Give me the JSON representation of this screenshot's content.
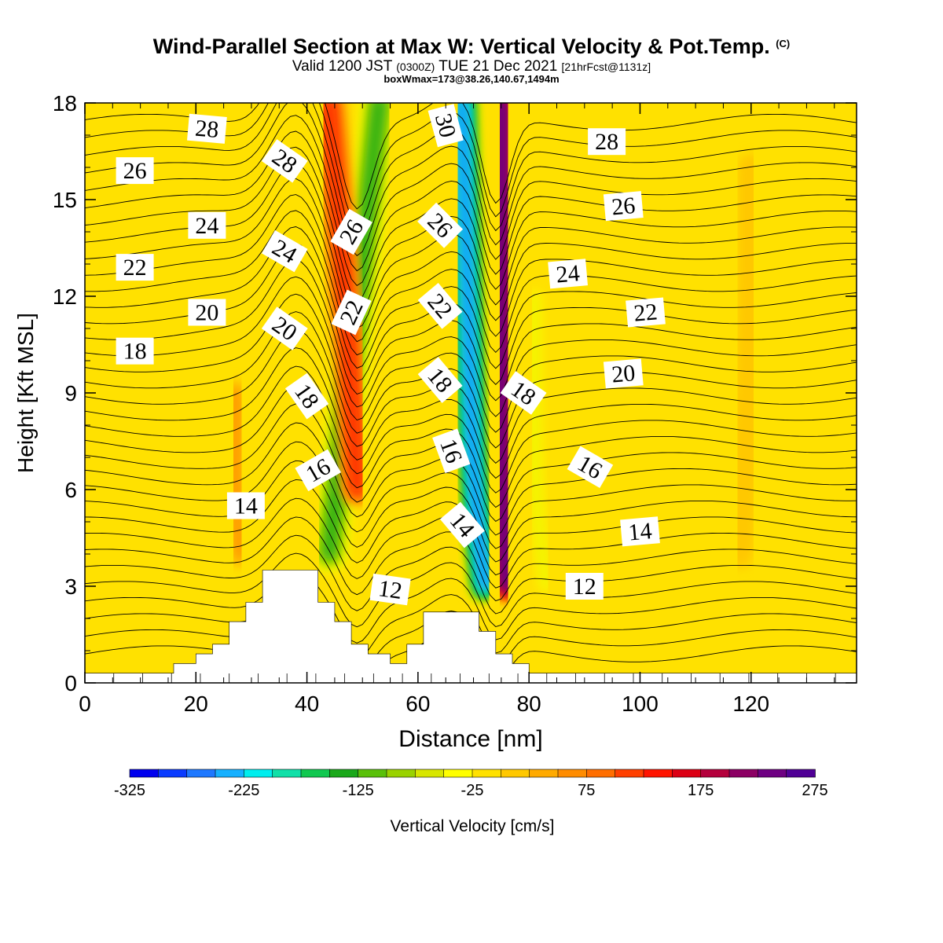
{
  "header": {
    "title": "Wind-Parallel Section at Max W: Vertical Velocity & Pot.Temp.",
    "title_mark": "(C)",
    "valid_prefix": "Valid 1200 JST",
    "valid_zulu": "(0300Z)",
    "valid_date": "TUE 21 Dec 2021",
    "forecast": "[21hrFcst@1131z]",
    "box_info": "boxWmax=173@38.26,140.67,1494m"
  },
  "chart_data": {
    "type": "heatmap",
    "xlabel": "Distance [nm]",
    "ylabel": "Height [Kft MSL]",
    "xlim": [
      0,
      139
    ],
    "ylim": [
      0,
      18
    ],
    "x_ticks": [
      0,
      20,
      40,
      60,
      80,
      100,
      120
    ],
    "y_ticks": [
      0,
      3,
      6,
      9,
      12,
      15,
      18
    ],
    "colorbar": {
      "label": "Vertical Velocity [cm/s]",
      "min": -325,
      "max": 275,
      "step": 25,
      "tick_labels": [
        "-325",
        "-225",
        "-125",
        "-25",
        "75",
        "175",
        "275"
      ],
      "colors": [
        "#0000ee",
        "#0a3bff",
        "#1e78ff",
        "#16b0ff",
        "#00eeee",
        "#10e0a8",
        "#10c850",
        "#1aa81a",
        "#5ac00a",
        "#9ad200",
        "#d8e600",
        "#ffff00",
        "#ffe100",
        "#ffc800",
        "#ffaa00",
        "#ff8c00",
        "#ff6e00",
        "#ff4000",
        "#ff1400",
        "#dc0014",
        "#b4003c",
        "#8c0064",
        "#6e0082",
        "#500096"
      ]
    },
    "terrain_profile_kft": {
      "x": [
        0,
        16,
        16,
        20,
        20,
        23,
        23,
        26,
        26,
        29,
        29,
        32,
        32,
        42,
        42,
        45,
        45,
        48,
        48,
        51,
        51,
        55,
        55,
        58,
        58,
        61,
        61,
        71,
        71,
        74,
        74,
        77,
        77,
        80,
        80,
        84,
        84,
        139
      ],
      "y": [
        0.3,
        0.3,
        0.6,
        0.6,
        0.9,
        0.9,
        1.2,
        1.2,
        1.9,
        1.9,
        2.5,
        2.5,
        3.5,
        3.5,
        2.5,
        2.5,
        1.9,
        1.9,
        1.2,
        1.2,
        0.9,
        0.9,
        0.6,
        0.6,
        1.2,
        1.2,
        2.2,
        2.2,
        1.6,
        1.6,
        0.9,
        0.9,
        0.6,
        0.6,
        0.3,
        0.3,
        0.3,
        0.3
      ]
    },
    "vertical_velocity_features": [
      {
        "x_kft": [
          [
            53,
            18
          ],
          [
            48,
            10
          ],
          [
            44,
            4
          ]
        ],
        "w": -150,
        "width_nm": 4
      },
      {
        "x_kft": [
          [
            44,
            18
          ],
          [
            47,
            12
          ],
          [
            49,
            6
          ]
        ],
        "w": 125,
        "width_nm": 3
      },
      {
        "x_kft": [
          [
            68,
            18
          ],
          [
            69,
            12
          ],
          [
            70,
            6
          ],
          [
            72,
            3
          ]
        ],
        "w": -260,
        "width_nm": 3
      },
      {
        "x_kft": [
          [
            75,
            18
          ],
          [
            75,
            12
          ],
          [
            75,
            6
          ],
          [
            76,
            3
          ]
        ],
        "w": 250,
        "width_nm": 2.5
      },
      {
        "x_kft": [
          [
            81,
            12
          ],
          [
            81,
            6
          ],
          [
            83,
            3
          ]
        ],
        "w": -60,
        "width_nm": 2
      },
      {
        "x_kft": [
          [
            27,
            9
          ],
          [
            27,
            6
          ],
          [
            28,
            4
          ]
        ],
        "w": 60,
        "width_nm": 3
      },
      {
        "x_kft": [
          [
            10,
            17
          ],
          [
            10,
            14
          ],
          [
            10,
            12
          ]
        ],
        "w": 20,
        "width_nm": 4
      },
      {
        "x_kft": [
          [
            120,
            16
          ],
          [
            120,
            10
          ],
          [
            118,
            4
          ]
        ],
        "w": 15,
        "width_nm": 4
      }
    ],
    "theta_labels": [
      {
        "text": "28",
        "x": 22,
        "y": 17.2,
        "angle": 5
      },
      {
        "text": "26",
        "x": 9,
        "y": 15.9,
        "angle": 0
      },
      {
        "text": "24",
        "x": 22,
        "y": 14.2,
        "angle": 0
      },
      {
        "text": "22",
        "x": 9,
        "y": 12.9,
        "angle": 0
      },
      {
        "text": "20",
        "x": 22,
        "y": 11.5,
        "angle": 0
      },
      {
        "text": "18",
        "x": 9,
        "y": 10.3,
        "angle": 0
      },
      {
        "text": "14",
        "x": 29,
        "y": 5.5,
        "angle": 0
      },
      {
        "text": "28",
        "x": 36,
        "y": 16.2,
        "angle": 35
      },
      {
        "text": "24",
        "x": 36,
        "y": 13.4,
        "angle": 30
      },
      {
        "text": "20",
        "x": 36,
        "y": 11.0,
        "angle": 35
      },
      {
        "text": "18",
        "x": 40,
        "y": 8.9,
        "angle": 55
      },
      {
        "text": "16",
        "x": 42,
        "y": 6.6,
        "angle": -30
      },
      {
        "text": "26",
        "x": 48,
        "y": 14.0,
        "angle": -60
      },
      {
        "text": "22",
        "x": 48,
        "y": 11.5,
        "angle": -65
      },
      {
        "text": "12",
        "x": 55,
        "y": 2.9,
        "angle": 8
      },
      {
        "text": "30",
        "x": 65,
        "y": 17.3,
        "angle": 75
      },
      {
        "text": "26",
        "x": 64,
        "y": 14.2,
        "angle": 45
      },
      {
        "text": "22",
        "x": 64,
        "y": 11.7,
        "angle": 50
      },
      {
        "text": "18",
        "x": 64,
        "y": 9.4,
        "angle": 50
      },
      {
        "text": "16",
        "x": 66,
        "y": 7.2,
        "angle": 70
      },
      {
        "text": "14",
        "x": 68,
        "y": 4.9,
        "angle": 50
      },
      {
        "text": "18",
        "x": 79,
        "y": 9.0,
        "angle": 35
      },
      {
        "text": "28",
        "x": 94,
        "y": 16.8,
        "angle": 0
      },
      {
        "text": "26",
        "x": 97,
        "y": 14.8,
        "angle": -5
      },
      {
        "text": "24",
        "x": 87,
        "y": 12.7,
        "angle": -5
      },
      {
        "text": "22",
        "x": 101,
        "y": 11.5,
        "angle": -5
      },
      {
        "text": "20",
        "x": 97,
        "y": 9.6,
        "angle": -5
      },
      {
        "text": "16",
        "x": 91,
        "y": 6.7,
        "angle": 30
      },
      {
        "text": "14",
        "x": 100,
        "y": 4.7,
        "angle": -5
      },
      {
        "text": "12",
        "x": 90,
        "y": 3.0,
        "angle": 0
      }
    ]
  }
}
